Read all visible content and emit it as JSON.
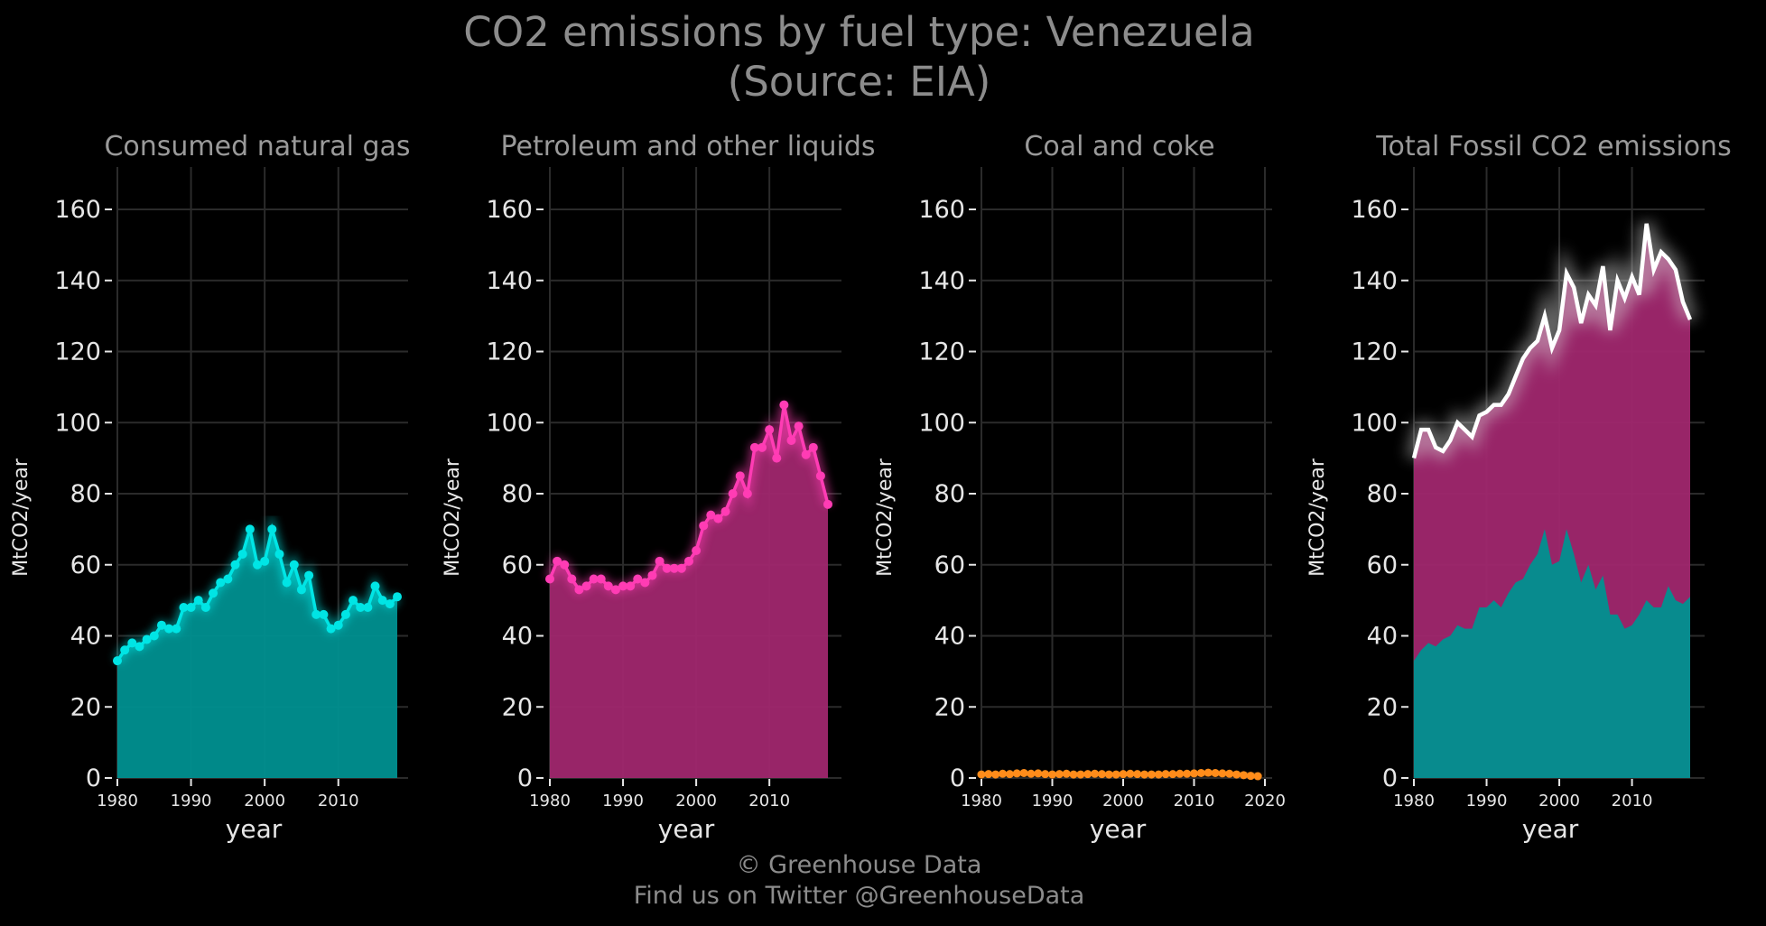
{
  "title": {
    "line1": "CO2 emissions by fuel type: Venezuela",
    "line2": "(Source: EIA)"
  },
  "footer": {
    "line1": "© Greenhouse Data",
    "line2": "Find us on Twitter @GreenhouseData"
  },
  "colors": {
    "background": "#000000",
    "gas": "#00e5e5",
    "gas_fill": "#009090",
    "petroleum": "#ff3cb4",
    "petroleum_fill": "#a0276e",
    "coal": "#ff8c1a",
    "total": "#ffffff",
    "grid": "#2b2b2b",
    "title_text": "#8c8c8c"
  },
  "chart_data": [
    {
      "type": "area",
      "title": "Consumed natural gas",
      "xlabel": "year",
      "ylabel": "MtCO2/year",
      "xlim": [
        1980,
        2018
      ],
      "ylim": [
        0,
        170
      ],
      "xticks": [
        1980,
        1990,
        2000,
        2010
      ],
      "yticks": [
        0,
        20,
        40,
        60,
        80,
        100,
        120,
        140,
        160
      ],
      "grid": true,
      "series": [
        {
          "x": [
            1980,
            1981,
            1982,
            1983,
            1984,
            1985,
            1986,
            1987,
            1988,
            1989,
            1990,
            1991,
            1992,
            1993,
            1994,
            1995,
            1996,
            1997,
            1998,
            1999,
            2000,
            2001,
            2002,
            2003,
            2004,
            2005,
            2006,
            2007,
            2008,
            2009,
            2010,
            2011,
            2012,
            2013,
            2014,
            2015,
            2016,
            2017,
            2018
          ],
          "values": [
            33,
            36,
            38,
            37,
            39,
            40,
            43,
            42,
            42,
            48,
            48,
            50,
            48,
            52,
            55,
            56,
            60,
            63,
            70,
            60,
            61,
            70,
            63,
            55,
            60,
            53,
            57,
            46,
            46,
            42,
            43,
            46,
            50,
            48,
            48,
            54,
            50,
            49,
            51
          ]
        }
      ]
    },
    {
      "type": "area",
      "title": "Petroleum and other liquids",
      "xlabel": "year",
      "ylabel": "MtCO2/year",
      "xlim": [
        1980,
        2018
      ],
      "ylim": [
        0,
        170
      ],
      "xticks": [
        1980,
        1990,
        2000,
        2010
      ],
      "yticks": [
        0,
        20,
        40,
        60,
        80,
        100,
        120,
        140,
        160
      ],
      "grid": true,
      "series": [
        {
          "x": [
            1980,
            1981,
            1982,
            1983,
            1984,
            1985,
            1986,
            1987,
            1988,
            1989,
            1990,
            1991,
            1992,
            1993,
            1994,
            1995,
            1996,
            1997,
            1998,
            1999,
            2000,
            2001,
            2002,
            2003,
            2004,
            2005,
            2006,
            2007,
            2008,
            2009,
            2010,
            2011,
            2012,
            2013,
            2014,
            2015,
            2016,
            2017,
            2018
          ],
          "values": [
            56,
            61,
            60,
            56,
            53,
            54,
            56,
            56,
            54,
            53,
            54,
            54,
            56,
            55,
            57,
            61,
            59,
            59,
            59,
            61,
            64,
            71,
            74,
            73,
            75,
            80,
            85,
            80,
            93,
            93,
            98,
            90,
            105,
            95,
            99,
            91,
            93,
            85,
            77
          ]
        }
      ]
    },
    {
      "type": "line",
      "title": "Coal and coke",
      "xlabel": "year",
      "ylabel": "MtCO2/year",
      "xlim": [
        1980,
        2020
      ],
      "ylim": [
        0,
        170
      ],
      "xticks": [
        1980,
        1990,
        2000,
        2010,
        2020
      ],
      "yticks": [
        0,
        20,
        40,
        60,
        80,
        100,
        120,
        140,
        160
      ],
      "grid": true,
      "series": [
        {
          "x": [
            1980,
            1981,
            1982,
            1983,
            1984,
            1985,
            1986,
            1987,
            1988,
            1989,
            1990,
            1991,
            1992,
            1993,
            1994,
            1995,
            1996,
            1997,
            1998,
            1999,
            2000,
            2001,
            2002,
            2003,
            2004,
            2005,
            2006,
            2007,
            2008,
            2009,
            2010,
            2011,
            2012,
            2013,
            2014,
            2015,
            2016,
            2017,
            2018,
            2019
          ],
          "values": [
            1.0,
            1.1,
            1.0,
            1.2,
            1.1,
            1.3,
            1.4,
            1.2,
            1.3,
            1.1,
            1.0,
            1.1,
            1.2,
            1.0,
            1.0,
            1.1,
            1.2,
            1.1,
            1.0,
            1.0,
            1.1,
            1.2,
            1.1,
            1.0,
            1.0,
            1.0,
            1.1,
            1.1,
            1.2,
            1.2,
            1.3,
            1.4,
            1.5,
            1.4,
            1.3,
            1.2,
            1.0,
            0.8,
            0.6,
            0.5
          ]
        }
      ]
    },
    {
      "type": "area",
      "title": "Total Fossil CO2 emissions",
      "xlabel": "year",
      "ylabel": "MtCO2/year",
      "xlim": [
        1980,
        2018
      ],
      "ylim": [
        0,
        170
      ],
      "xticks": [
        1980,
        1990,
        2000,
        2010
      ],
      "yticks": [
        0,
        20,
        40,
        60,
        80,
        100,
        120,
        140,
        160
      ],
      "grid": true,
      "stacked": true,
      "series": [
        {
          "x": [
            1980,
            1981,
            1982,
            1983,
            1984,
            1985,
            1986,
            1987,
            1988,
            1989,
            1990,
            1991,
            1992,
            1993,
            1994,
            1995,
            1996,
            1997,
            1998,
            1999,
            2000,
            2001,
            2002,
            2003,
            2004,
            2005,
            2006,
            2007,
            2008,
            2009,
            2010,
            2011,
            2012,
            2013,
            2014,
            2015,
            2016,
            2017,
            2018
          ],
          "values": [
            90,
            98,
            98,
            93,
            92,
            95,
            100,
            98,
            96,
            102,
            103,
            105,
            105,
            108,
            113,
            118,
            121,
            123,
            130,
            121,
            126,
            142,
            138,
            128,
            136,
            133,
            144,
            126,
            140,
            135,
            141,
            136,
            156,
            143,
            148,
            146,
            143,
            134,
            129
          ]
        }
      ]
    }
  ]
}
